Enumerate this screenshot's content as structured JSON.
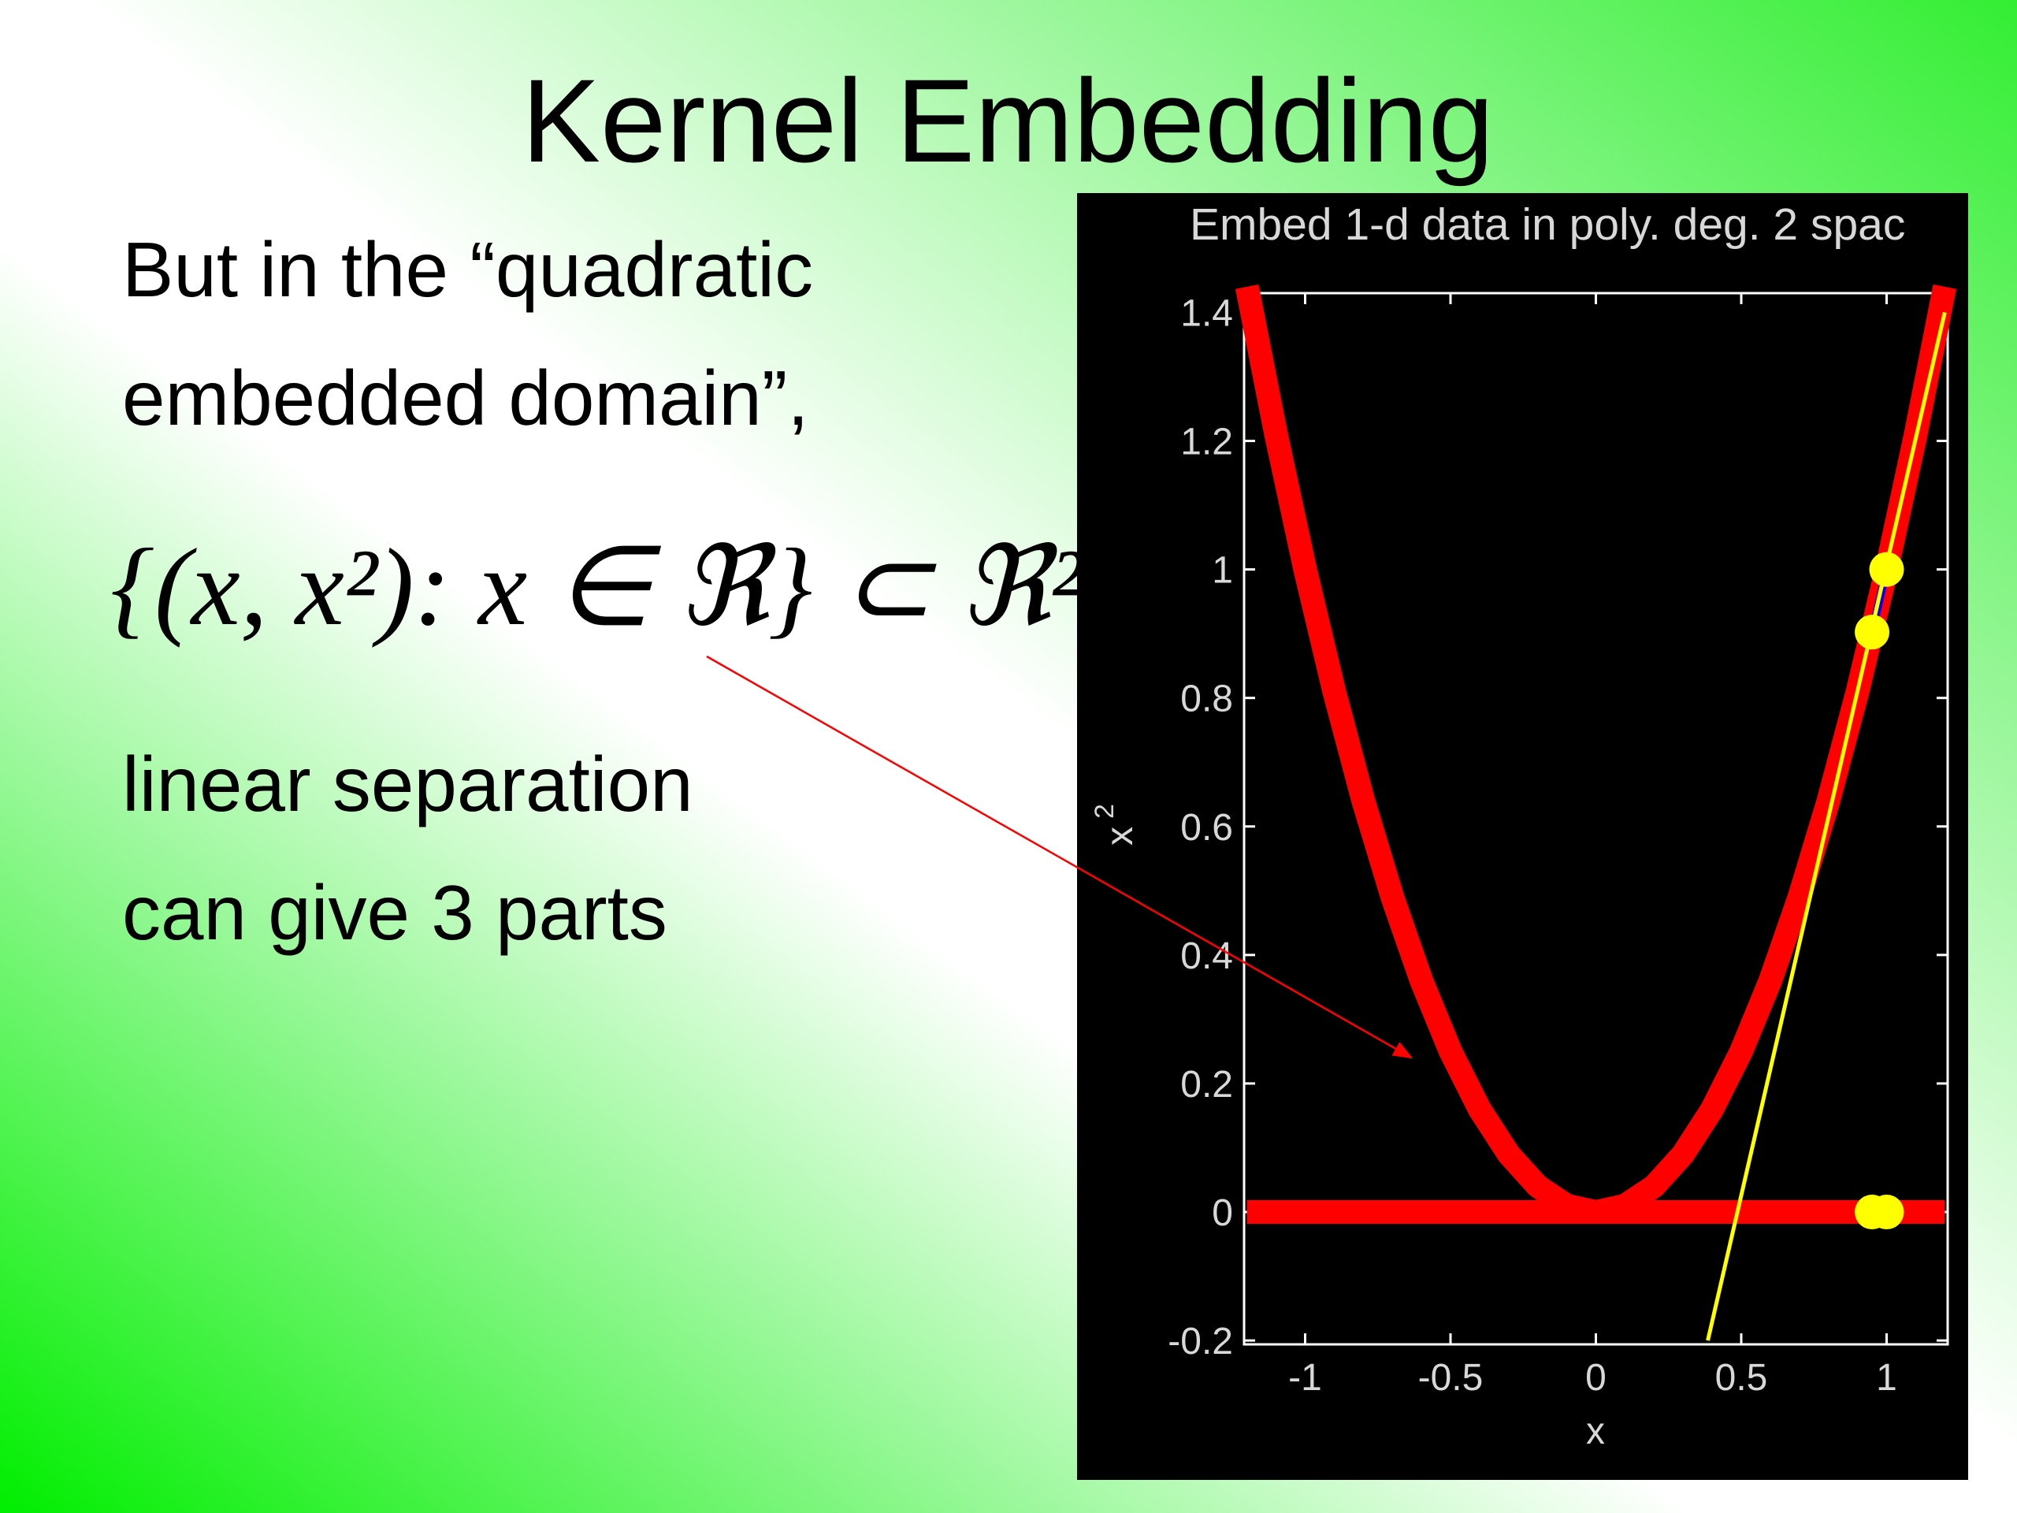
{
  "slide": {
    "title": "Kernel Embedding",
    "lines": [
      "But in the “quadratic",
      "embedded domain”,",
      "linear separation",
      "can give 3 parts"
    ],
    "formula": "{(x, x²): x ∈ ℜ} ⊂ ℜ²"
  },
  "chart_data": {
    "type": "line",
    "title": "Embed 1-d data in poly. deg. 2 spac",
    "xlabel": "x",
    "ylabel": "x",
    "ylabel_sup": "2",
    "xlim": [
      -1.21,
      1.21
    ],
    "ylim": [
      -0.206,
      1.43
    ],
    "xticks": [
      -1,
      -0.5,
      0,
      0.5,
      1
    ],
    "yticks": [
      -0.2,
      0,
      0.2,
      0.4,
      0.6,
      0.8,
      1,
      1.2,
      1.4
    ],
    "series": [
      {
        "color": "#ff0000",
        "style": "line",
        "width": 30,
        "x": [
          -1.2,
          -1.1,
          -1.0,
          -0.9,
          -0.8,
          -0.7,
          -0.6,
          -0.5,
          -0.4,
          -0.3,
          -0.2,
          -0.1,
          0,
          0.1,
          0.2,
          0.3,
          0.4,
          0.5,
          0.6,
          0.7,
          0.8,
          0.9,
          1.0,
          1.1,
          1.2
        ],
        "values": [
          1.44,
          1.21,
          1.0,
          0.81,
          0.64,
          0.49,
          0.36,
          0.25,
          0.16,
          0.09,
          0.04,
          0.01,
          0,
          0.01,
          0.04,
          0.09,
          0.16,
          0.25,
          0.36,
          0.49,
          0.64,
          0.81,
          1.0,
          1.21,
          1.44
        ]
      },
      {
        "color": "#ff0000",
        "style": "line",
        "width": 30,
        "x": [
          -1.2,
          1.2
        ],
        "values": [
          0,
          0
        ]
      },
      {
        "color": "#0000ff",
        "style": "line",
        "width": 10,
        "x": [
          0.95,
          1.0
        ],
        "values": [
          0.9025,
          1.0
        ]
      },
      {
        "color": "#ffff00",
        "style": "line",
        "width": 5,
        "x": [
          0.385,
          1.2
        ],
        "values": [
          -0.2,
          1.4
        ]
      },
      {
        "color": "#ffff00",
        "style": "points",
        "x": [
          0.95,
          1.0,
          0.95,
          1.0
        ],
        "values": [
          0.9025,
          1.0,
          0,
          0
        ]
      }
    ]
  }
}
